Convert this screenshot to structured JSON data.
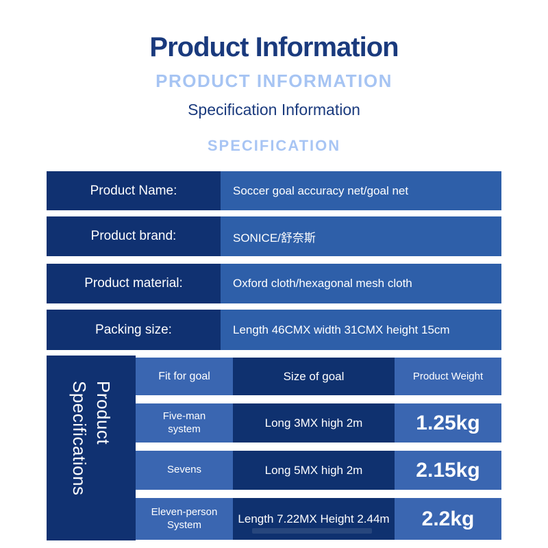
{
  "page": {
    "title": "Product Information",
    "subtitle": "PRODUCT INFORMATION",
    "section_title": "Specification Information",
    "section_subtitle": "SPECIFICATION"
  },
  "colors": {
    "title_navy": "#1a3a7d",
    "light_blue": "#a6c4f3",
    "dark_navy_cell": "#103171",
    "medium_blue_cell": "#2e5fa9",
    "bottom_blue_cell": "#3a66b1",
    "bottom_dark_cell": "#0f316f",
    "text_white": "#ffffff"
  },
  "spec_table": {
    "rows": [
      {
        "label": "Product Name:",
        "value": "Soccer goal accuracy net/goal net"
      },
      {
        "label": "Product brand:",
        "value": "SONICE/舒奈斯"
      },
      {
        "label": "Product material:",
        "value": "Oxford cloth/hexagonal mesh cloth"
      },
      {
        "label": "Packing size:",
        "value": "Length 46CMX width 31CMX height 15cm"
      }
    ]
  },
  "product_specifications": {
    "sidebar_title": "Product\nSpecifications",
    "columns": [
      "Fit for goal",
      "Size of goal",
      "Product Weight"
    ],
    "rows": [
      {
        "goal": "Five-man\nsystem",
        "size": "Long 3MX high 2m",
        "weight": "1.25kg"
      },
      {
        "goal": "Sevens",
        "size": "Long 5MX high 2m",
        "weight": "2.15kg"
      },
      {
        "goal": "Eleven-person\nSystem",
        "size": "Length 7.22MX Height 2.44m",
        "weight": "2.2kg"
      }
    ]
  }
}
